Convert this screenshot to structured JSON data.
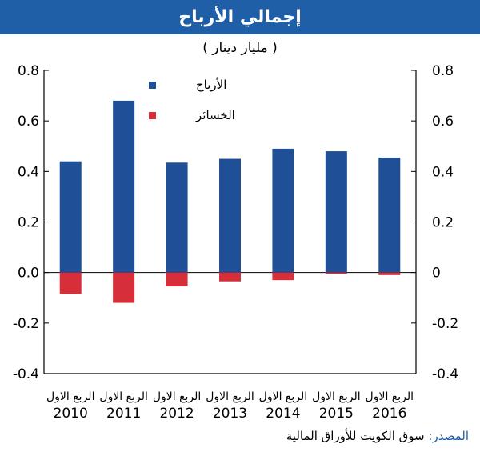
{
  "title": "إجمالي الأرباح",
  "subtitle": "( مليار دينار )",
  "source": {
    "label": "المصدر:",
    "text": "سوق الكويت للأوراق المالية"
  },
  "colors": {
    "banner": "#1f5fa8",
    "profits": "#1f4f97",
    "losses": "#d62f3a"
  },
  "chart_data": {
    "type": "bar",
    "categories": [
      [
        "الربع الاول",
        "2010"
      ],
      [
        "الربع الاول",
        "2011"
      ],
      [
        "الربع الاول",
        "2012"
      ],
      [
        "الربع الاول",
        "2013"
      ],
      [
        "الربع الاول",
        "2014"
      ],
      [
        "الربع الاول",
        "2015"
      ],
      [
        "الربع الاول",
        "2016"
      ]
    ],
    "series": [
      {
        "name": "الأرباح",
        "color": "#1f4f97",
        "values": [
          0.44,
          0.68,
          0.435,
          0.45,
          0.49,
          0.48,
          0.455
        ]
      },
      {
        "name": "الخسائر",
        "color": "#d62f3a",
        "values": [
          -0.085,
          -0.12,
          -0.055,
          -0.035,
          -0.03,
          -0.005,
          -0.01
        ]
      }
    ],
    "ylim": [
      -0.4,
      0.8
    ],
    "yticks_left": [
      "0.8",
      "0.6",
      "0.4",
      "0.2",
      "0.0",
      "-0.2",
      "-0.4"
    ],
    "yticks_right": [
      "0.8",
      "0.6",
      "0.4",
      "0.2",
      "0",
      "-0.2",
      "-0.4"
    ],
    "grid": false,
    "legend": "top-left"
  }
}
